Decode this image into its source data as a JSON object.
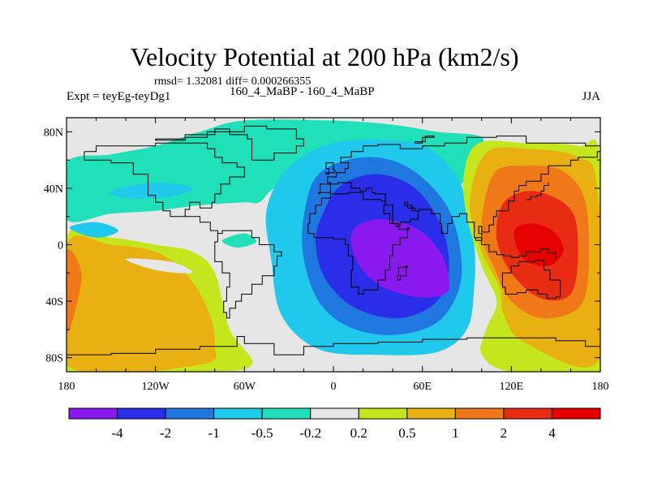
{
  "chart_data": {
    "type": "contour-map",
    "title": "Velocity Potential at 200 hPa (km2/s)",
    "stats_text": "rmsd= 1.32081 diff= 0.000266355",
    "experiment_label": "Expt = teyEg-teyDg1",
    "center_label": "160_4_MaBP - 160_4_MaBP",
    "season_label": "JJA",
    "xlim": [
      -180,
      180
    ],
    "ylim": [
      -90,
      90
    ],
    "x_ticks": [
      {
        "value": -180,
        "label": "180"
      },
      {
        "value": -120,
        "label": "120W"
      },
      {
        "value": -60,
        "label": "60W"
      },
      {
        "value": 0,
        "label": "0"
      },
      {
        "value": 60,
        "label": "60E"
      },
      {
        "value": 120,
        "label": "120E"
      },
      {
        "value": 180,
        "label": "180"
      }
    ],
    "y_ticks": [
      {
        "value": 80,
        "label": "80N"
      },
      {
        "value": 40,
        "label": "40N"
      },
      {
        "value": 0,
        "label": "0"
      },
      {
        "value": -40,
        "label": "40S"
      },
      {
        "value": -80,
        "label": "80S"
      }
    ],
    "contour_levels": [
      -4,
      -2,
      -1,
      -0.5,
      -0.2,
      0.2,
      0.5,
      1,
      2,
      4
    ],
    "colorbar_labels": [
      "-4",
      "-2",
      "-1",
      "-0.5",
      "-0.2",
      "0.2",
      "0.5",
      "1",
      "2",
      "4"
    ],
    "colorbar_colors": [
      "#8a19f0",
      "#2a2ee8",
      "#1f78e0",
      "#20c8ec",
      "#1fe0b8",
      "#e6e6e6",
      "#c5e61c",
      "#e8b010",
      "#f07818",
      "#e82c14",
      "#e60000"
    ],
    "field_regions": [
      {
        "name": "northern-hemisphere-weak-negative",
        "level": -0.2,
        "lon_lat": [
          [
            -180,
            58
          ],
          [
            -150,
            64
          ],
          [
            -120,
            70
          ],
          [
            -90,
            80
          ],
          [
            -60,
            88
          ],
          [
            0,
            88
          ],
          [
            40,
            85
          ],
          [
            70,
            80
          ],
          [
            100,
            76
          ],
          [
            95,
            60
          ],
          [
            88,
            45
          ],
          [
            75,
            35
          ],
          [
            55,
            40
          ],
          [
            30,
            50
          ],
          [
            0,
            60
          ],
          [
            -20,
            48
          ],
          [
            -40,
            40
          ],
          [
            -50,
            30
          ],
          [
            -60,
            30
          ],
          [
            -90,
            28
          ],
          [
            -120,
            24
          ],
          [
            -150,
            22
          ],
          [
            -180,
            18
          ]
        ]
      },
      {
        "name": "central-negative-mid",
        "level": -0.5,
        "lon_lat": [
          [
            -45,
            25
          ],
          [
            -30,
            55
          ],
          [
            0,
            72
          ],
          [
            40,
            74
          ],
          [
            65,
            68
          ],
          [
            85,
            45
          ],
          [
            90,
            20
          ],
          [
            95,
            0
          ],
          [
            95,
            -30
          ],
          [
            90,
            -60
          ],
          [
            70,
            -76
          ],
          [
            30,
            -78
          ],
          [
            -10,
            -74
          ],
          [
            -35,
            -50
          ],
          [
            -42,
            -10
          ]
        ]
      },
      {
        "name": "central-negative-moderate",
        "level": -1,
        "lon_lat": [
          [
            -20,
            20
          ],
          [
            -10,
            50
          ],
          [
            20,
            62
          ],
          [
            50,
            55
          ],
          [
            75,
            30
          ],
          [
            85,
            0
          ],
          [
            85,
            -30
          ],
          [
            70,
            -55
          ],
          [
            40,
            -64
          ],
          [
            10,
            -58
          ],
          [
            -10,
            -40
          ],
          [
            -20,
            -10
          ]
        ]
      },
      {
        "name": "central-negative-strong",
        "level": -2,
        "lon_lat": [
          [
            -8,
            20
          ],
          [
            5,
            42
          ],
          [
            30,
            50
          ],
          [
            55,
            40
          ],
          [
            72,
            15
          ],
          [
            78,
            -15
          ],
          [
            70,
            -40
          ],
          [
            45,
            -52
          ],
          [
            15,
            -45
          ],
          [
            -5,
            -25
          ],
          [
            -12,
            0
          ]
        ]
      },
      {
        "name": "central-negative-core",
        "level": -4,
        "lon_lat": [
          [
            13,
            10
          ],
          [
            30,
            18
          ],
          [
            55,
            12
          ],
          [
            72,
            -5
          ],
          [
            78,
            -25
          ],
          [
            75,
            -35
          ],
          [
            55,
            -37
          ],
          [
            30,
            -28
          ],
          [
            15,
            -10
          ]
        ]
      },
      {
        "name": "east-positive-weak",
        "level": 0.2,
        "lon_lat": [
          [
            98,
            72
          ],
          [
            130,
            72
          ],
          [
            165,
            70
          ],
          [
            180,
            60
          ],
          [
            180,
            -90
          ],
          [
            120,
            -90
          ],
          [
            100,
            -78
          ],
          [
            103,
            -60
          ],
          [
            110,
            -40
          ],
          [
            100,
            -15
          ],
          [
            90,
            20
          ],
          [
            88,
            50
          ]
        ]
      },
      {
        "name": "east-positive-mid",
        "level": 0.5,
        "lon_lat": [
          [
            103,
            65
          ],
          [
            130,
            68
          ],
          [
            165,
            62
          ],
          [
            178,
            40
          ],
          [
            180,
            -80
          ],
          [
            130,
            -70
          ],
          [
            115,
            -50
          ],
          [
            112,
            -30
          ],
          [
            100,
            -5
          ],
          [
            92,
            30
          ]
        ]
      },
      {
        "name": "east-positive-moderate",
        "level": 1,
        "lon_lat": [
          [
            108,
            50
          ],
          [
            130,
            56
          ],
          [
            155,
            52
          ],
          [
            170,
            30
          ],
          [
            172,
            -20
          ],
          [
            165,
            -45
          ],
          [
            140,
            -52
          ],
          [
            120,
            -40
          ],
          [
            110,
            -20
          ],
          [
            100,
            10
          ]
        ]
      },
      {
        "name": "east-positive-strong",
        "level": 2,
        "lon_lat": [
          [
            115,
            30
          ],
          [
            135,
            38
          ],
          [
            160,
            25
          ],
          [
            165,
            -5
          ],
          [
            160,
            -35
          ],
          [
            140,
            -38
          ],
          [
            120,
            -20
          ],
          [
            110,
            5
          ]
        ]
      },
      {
        "name": "east-positive-core",
        "level": 4,
        "lon_lat": [
          [
            122,
            10
          ],
          [
            135,
            15
          ],
          [
            150,
            8
          ],
          [
            155,
            -5
          ],
          [
            145,
            -15
          ],
          [
            128,
            -10
          ]
        ]
      },
      {
        "name": "west-positive-weak",
        "level": 0.2,
        "lon_lat": [
          [
            -180,
            5
          ],
          [
            -150,
            5
          ],
          [
            -120,
            0
          ],
          [
            -95,
            -5
          ],
          [
            -80,
            -20
          ],
          [
            -70,
            -60
          ],
          [
            -55,
            -85
          ],
          [
            -90,
            -90
          ],
          [
            -180,
            -90
          ]
        ]
      },
      {
        "name": "west-positive-mid",
        "level": 0.5,
        "lon_lat": [
          [
            -180,
            0
          ],
          [
            -150,
            0
          ],
          [
            -120,
            -5
          ],
          [
            -100,
            -20
          ],
          [
            -85,
            -45
          ],
          [
            -80,
            -70
          ],
          [
            -90,
            -85
          ],
          [
            -180,
            -85
          ]
        ]
      },
      {
        "name": "west-positive-moderate",
        "level": 1,
        "lon_lat": [
          [
            -180,
            -5
          ],
          [
            -170,
            -20
          ],
          [
            -175,
            -50
          ],
          [
            -180,
            -60
          ]
        ]
      }
    ],
    "coastline_note": "Black coarse-resolution continental outlines are overlaid."
  }
}
